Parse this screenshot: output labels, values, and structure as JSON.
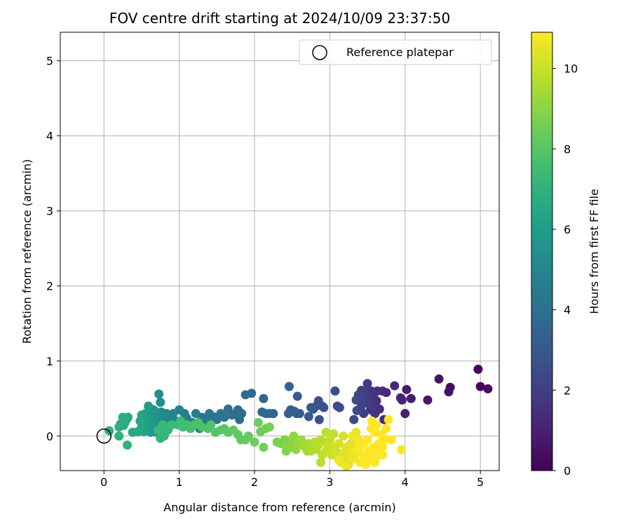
{
  "chart_data": {
    "type": "scatter",
    "title": "FOV centre drift starting at 2024/10/09 23:37:50",
    "xlabel": "Angular distance from reference (arcmin)",
    "ylabel": "Rotation from reference (arcmin)",
    "xlim": [
      -0.58,
      5.25
    ],
    "ylim": [
      -0.46,
      5.38
    ],
    "xticks": [
      0,
      1,
      2,
      3,
      4,
      5
    ],
    "yticks": [
      0,
      1,
      2,
      3,
      4,
      5
    ],
    "grid": true,
    "legend": {
      "position": "top-right",
      "entries": [
        "Reference platepar"
      ]
    },
    "reference_point": {
      "label": "Reference platepar",
      "x": 0,
      "y": 0,
      "marker": "open-circle"
    },
    "colorbar": {
      "label": "Hours from first FF file",
      "colormap": "viridis",
      "range": [
        0,
        10.9
      ],
      "ticks": [
        0,
        2,
        4,
        6,
        8,
        10
      ]
    },
    "series": [
      {
        "points": [
          [
            4.97,
            0.89,
            0.1
          ],
          [
            5.0,
            0.66,
            0.2
          ],
          [
            5.1,
            0.63,
            0.3
          ],
          [
            4.6,
            0.65,
            0.4
          ],
          [
            4.58,
            0.59,
            0.5
          ],
          [
            4.45,
            0.76,
            0.6
          ],
          [
            4.3,
            0.48,
            0.7
          ],
          [
            4.08,
            0.5,
            0.8
          ],
          [
            4.02,
            0.62,
            0.9
          ],
          [
            4.0,
            0.3,
            1.0
          ],
          [
            3.96,
            0.48,
            1.1
          ],
          [
            3.94,
            0.51,
            1.15
          ],
          [
            3.86,
            0.67,
            1.2
          ],
          [
            3.75,
            0.58,
            1.3
          ],
          [
            3.72,
            0.22,
            1.35
          ],
          [
            3.7,
            0.6,
            1.4
          ],
          [
            3.66,
            0.36,
            1.45
          ],
          [
            3.63,
            0.6,
            1.5
          ],
          [
            3.62,
            0.47,
            1.55
          ],
          [
            3.6,
            0.3,
            1.6
          ],
          [
            3.58,
            0.55,
            1.65
          ],
          [
            3.56,
            0.42,
            1.7
          ],
          [
            3.55,
            0.6,
            1.75
          ],
          [
            3.54,
            0.35,
            1.8
          ],
          [
            3.52,
            0.5,
            1.85
          ],
          [
            3.5,
            0.7,
            1.9
          ],
          [
            3.48,
            0.44,
            1.95
          ],
          [
            3.46,
            0.6,
            2.0
          ],
          [
            3.45,
            0.3,
            2.05
          ],
          [
            3.44,
            0.52,
            2.1
          ],
          [
            3.42,
            0.61,
            2.15
          ],
          [
            3.41,
            0.38,
            2.2
          ],
          [
            3.4,
            0.47,
            2.25
          ],
          [
            3.38,
            0.55,
            2.3
          ],
          [
            3.36,
            0.34,
            2.35
          ],
          [
            3.35,
            0.48,
            2.4
          ],
          [
            3.32,
            0.22,
            2.45
          ],
          [
            3.13,
            0.38,
            2.5
          ],
          [
            3.1,
            0.4,
            2.55
          ],
          [
            3.07,
            0.6,
            2.6
          ],
          [
            2.92,
            0.38,
            2.65
          ],
          [
            2.9,
            0.4,
            2.7
          ],
          [
            2.86,
            0.22,
            2.75
          ],
          [
            2.85,
            0.47,
            2.8
          ],
          [
            2.82,
            0.4,
            2.85
          ],
          [
            2.78,
            0.36,
            2.9
          ],
          [
            2.75,
            0.38,
            2.95
          ],
          [
            2.72,
            0.26,
            3.0
          ],
          [
            2.6,
            0.3,
            3.05
          ],
          [
            2.57,
            0.53,
            3.1
          ],
          [
            2.56,
            0.3,
            3.15
          ],
          [
            2.53,
            0.33,
            3.2
          ],
          [
            2.5,
            0.33,
            3.25
          ],
          [
            2.48,
            0.35,
            3.3
          ],
          [
            2.46,
            0.66,
            3.35
          ],
          [
            2.45,
            0.3,
            3.4
          ],
          [
            2.25,
            0.3,
            3.45
          ],
          [
            2.2,
            0.3,
            3.5
          ],
          [
            2.15,
            0.3,
            3.55
          ],
          [
            2.12,
            0.5,
            3.6
          ],
          [
            2.1,
            0.32,
            3.65
          ],
          [
            1.96,
            0.57,
            3.7
          ],
          [
            1.88,
            0.55,
            3.75
          ],
          [
            1.83,
            0.3,
            3.8
          ],
          [
            1.8,
            0.22,
            3.85
          ],
          [
            1.78,
            0.35,
            3.9
          ],
          [
            1.75,
            0.3,
            3.95
          ],
          [
            1.7,
            0.28,
            4.0
          ],
          [
            1.65,
            0.36,
            4.05
          ],
          [
            1.6,
            0.25,
            4.1
          ],
          [
            1.55,
            0.3,
            4.15
          ],
          [
            1.5,
            0.22,
            4.2
          ],
          [
            1.45,
            0.26,
            4.25
          ],
          [
            1.4,
            0.3,
            4.3
          ],
          [
            1.35,
            0.2,
            4.35
          ],
          [
            1.3,
            0.25,
            4.4
          ],
          [
            1.27,
            0.1,
            4.45
          ],
          [
            1.22,
            0.3,
            4.5
          ],
          [
            1.17,
            0.18,
            4.55
          ],
          [
            1.13,
            0.12,
            4.6
          ],
          [
            1.1,
            0.24,
            4.65
          ],
          [
            1.07,
            0.3,
            4.7
          ],
          [
            1.03,
            0.15,
            4.75
          ],
          [
            1.0,
            0.35,
            4.8
          ],
          [
            0.96,
            0.2,
            4.85
          ],
          [
            0.92,
            0.3,
            4.9
          ],
          [
            0.88,
            0.25,
            4.95
          ],
          [
            0.85,
            0.12,
            5.0
          ],
          [
            0.83,
            0.3,
            5.05
          ],
          [
            0.8,
            0.22,
            5.1
          ],
          [
            0.78,
            0.18,
            5.15
          ],
          [
            0.77,
            0.1,
            5.2
          ],
          [
            0.76,
            0.32,
            5.25
          ],
          [
            0.75,
            0.45,
            5.3
          ],
          [
            0.74,
            0.22,
            5.35
          ],
          [
            0.73,
            0.56,
            5.4
          ],
          [
            0.72,
            0.14,
            5.45
          ],
          [
            0.71,
            0.3,
            5.5
          ],
          [
            0.7,
            0.05,
            5.55
          ],
          [
            0.68,
            0.28,
            5.6
          ],
          [
            0.67,
            0.2,
            5.65
          ],
          [
            0.66,
            0.35,
            5.7
          ],
          [
            0.65,
            0.12,
            5.75
          ],
          [
            0.63,
            0.25,
            5.8
          ],
          [
            0.62,
            0.05,
            5.85
          ],
          [
            0.61,
            0.3,
            5.9
          ],
          [
            0.6,
            0.18,
            5.95
          ],
          [
            0.59,
            0.4,
            6.0
          ],
          [
            0.57,
            0.1,
            6.05
          ],
          [
            0.56,
            0.22,
            6.1
          ],
          [
            0.55,
            0.3,
            6.15
          ],
          [
            0.54,
            0.15,
            6.2
          ],
          [
            0.53,
            0.06,
            6.25
          ],
          [
            0.52,
            0.2,
            6.3
          ],
          [
            0.5,
            0.28,
            6.35
          ],
          [
            0.5,
            0.12,
            6.4
          ],
          [
            0.48,
            0.2,
            6.45
          ],
          [
            0.45,
            0.06,
            6.5
          ],
          [
            0.38,
            0.05,
            6.55
          ],
          [
            0.32,
            0.25,
            6.6
          ],
          [
            0.3,
            0.22,
            6.65
          ],
          [
            0.28,
            0.18,
            6.7
          ],
          [
            0.26,
            0.14,
            6.75
          ],
          [
            0.25,
            0.25,
            6.8
          ],
          [
            0.22,
            0.16,
            6.85
          ],
          [
            0.2,
            0.12,
            6.9
          ],
          [
            0.2,
            0.0,
            6.95
          ],
          [
            0.07,
            0.07,
            7.0
          ],
          [
            0.31,
            -0.12,
            7.05
          ],
          [
            0.75,
            -0.03,
            7.1
          ],
          [
            0.8,
            0.0,
            7.15
          ],
          [
            0.82,
            0.05,
            7.2
          ],
          [
            0.85,
            0.08,
            7.25
          ],
          [
            0.72,
            0.08,
            7.3
          ],
          [
            0.78,
            0.15,
            7.35
          ],
          [
            0.9,
            0.15,
            7.4
          ],
          [
            0.98,
            0.15,
            7.45
          ],
          [
            1.02,
            0.2,
            7.5
          ],
          [
            1.05,
            0.12,
            7.55
          ],
          [
            1.1,
            0.15,
            7.6
          ],
          [
            1.15,
            0.1,
            7.65
          ],
          [
            1.2,
            0.15,
            7.7
          ],
          [
            1.25,
            0.18,
            7.75
          ],
          [
            1.3,
            0.12,
            7.8
          ],
          [
            1.38,
            0.1,
            7.85
          ],
          [
            1.42,
            0.15,
            7.9
          ],
          [
            1.48,
            0.05,
            7.95
          ],
          [
            1.55,
            0.08,
            8.0
          ],
          [
            1.6,
            0.1,
            8.05
          ],
          [
            1.65,
            0.05,
            8.1
          ],
          [
            1.72,
            0.08,
            8.15
          ],
          [
            1.78,
            0.02,
            8.2
          ],
          [
            1.82,
            -0.05,
            8.25
          ],
          [
            1.88,
            -0.05,
            8.3
          ],
          [
            1.92,
            0.0,
            8.35
          ],
          [
            2.0,
            -0.08,
            8.4
          ],
          [
            2.05,
            0.18,
            8.45
          ],
          [
            2.08,
            0.06,
            8.5
          ],
          [
            2.12,
            -0.15,
            8.55
          ],
          [
            2.15,
            0.1,
            8.6
          ],
          [
            2.2,
            0.12,
            8.65
          ],
          [
            2.3,
            -0.08,
            8.7
          ],
          [
            2.35,
            -0.1,
            8.75
          ],
          [
            2.4,
            -0.05,
            8.8
          ],
          [
            2.42,
            -0.2,
            8.85
          ],
          [
            2.45,
            -0.1,
            8.9
          ],
          [
            2.48,
            -0.15,
            8.95
          ],
          [
            2.5,
            -0.05,
            9.0
          ],
          [
            2.52,
            0.0,
            9.05
          ],
          [
            2.55,
            -0.18,
            9.1
          ],
          [
            2.58,
            -0.08,
            9.15
          ],
          [
            2.6,
            -0.1,
            9.2
          ],
          [
            2.62,
            -0.05,
            9.25
          ],
          [
            2.65,
            -0.12,
            9.3
          ],
          [
            2.68,
            -0.16,
            9.35
          ],
          [
            2.7,
            -0.2,
            9.4
          ],
          [
            2.72,
            -0.1,
            9.45
          ],
          [
            2.75,
            -0.2,
            9.5
          ],
          [
            2.78,
            -0.15,
            9.55
          ],
          [
            2.8,
            -0.08,
            9.6
          ],
          [
            2.82,
            -0.18,
            9.65
          ],
          [
            2.85,
            -0.12,
            9.7
          ],
          [
            2.88,
            -0.35,
            9.75
          ],
          [
            2.9,
            -0.25,
            9.8
          ],
          [
            2.92,
            -0.08,
            9.85
          ],
          [
            2.95,
            -0.2,
            9.9
          ],
          [
            2.98,
            -0.12,
            9.95
          ],
          [
            3.0,
            -0.18,
            10.0
          ],
          [
            3.02,
            -0.25,
            10.05
          ],
          [
            3.05,
            -0.15,
            10.1
          ],
          [
            3.08,
            -0.2,
            10.15
          ],
          [
            3.1,
            -0.28,
            10.2
          ],
          [
            3.12,
            -0.1,
            10.25
          ],
          [
            3.15,
            -0.35,
            10.3
          ],
          [
            3.18,
            -0.22,
            10.35
          ],
          [
            3.2,
            -0.3,
            10.4
          ],
          [
            3.22,
            -0.15,
            10.45
          ],
          [
            3.25,
            -0.38,
            10.5
          ],
          [
            3.28,
            -0.25,
            10.55
          ],
          [
            3.3,
            -0.2,
            10.6
          ],
          [
            3.32,
            -0.3,
            10.65
          ],
          [
            3.35,
            -0.15,
            10.7
          ],
          [
            3.38,
            -0.22,
            10.75
          ],
          [
            3.4,
            -0.35,
            10.8
          ],
          [
            3.45,
            -0.1,
            10.85
          ],
          [
            3.48,
            -0.25,
            10.9
          ],
          [
            3.5,
            -0.05,
            10.9
          ],
          [
            3.52,
            -0.2,
            10.9
          ],
          [
            3.55,
            -0.3,
            10.9
          ],
          [
            3.58,
            -0.15,
            10.9
          ],
          [
            3.6,
            0.05,
            10.9
          ],
          [
            3.62,
            -0.2,
            10.9
          ],
          [
            3.65,
            -0.1,
            10.9
          ],
          [
            3.68,
            0.02,
            10.9
          ],
          [
            3.7,
            -0.15,
            10.9
          ],
          [
            3.72,
            -0.05,
            10.9
          ],
          [
            3.75,
            0.1,
            10.9
          ],
          [
            3.78,
            0.22,
            10.9
          ],
          [
            3.82,
            -0.05,
            10.9
          ],
          [
            3.95,
            -0.18,
            10.9
          ],
          [
            3.45,
            -0.32,
            10.85
          ],
          [
            3.38,
            -0.05,
            10.8
          ],
          [
            3.3,
            0.0,
            10.75
          ],
          [
            3.12,
            -0.32,
            10.7
          ],
          [
            3.22,
            -0.4,
            10.65
          ],
          [
            3.56,
            0.2,
            10.9
          ],
          [
            3.62,
            0.15,
            10.9
          ],
          [
            3.48,
            -0.38,
            10.9
          ],
          [
            3.4,
            -0.15,
            10.9
          ],
          [
            3.65,
            -0.25,
            10.9
          ],
          [
            3.0,
            -0.05,
            9.9
          ],
          [
            2.95,
            0.05,
            9.8
          ],
          [
            3.05,
            0.03,
            9.85
          ],
          [
            2.88,
            -0.05,
            9.7
          ],
          [
            3.18,
            0.0,
            10.2
          ],
          [
            3.28,
            -0.1,
            10.4
          ],
          [
            3.35,
            0.05,
            10.6
          ],
          [
            3.55,
            0.1,
            10.9
          ],
          [
            3.7,
            -0.25,
            10.9
          ],
          [
            3.6,
            -0.35,
            10.9
          ]
        ]
      }
    ]
  }
}
